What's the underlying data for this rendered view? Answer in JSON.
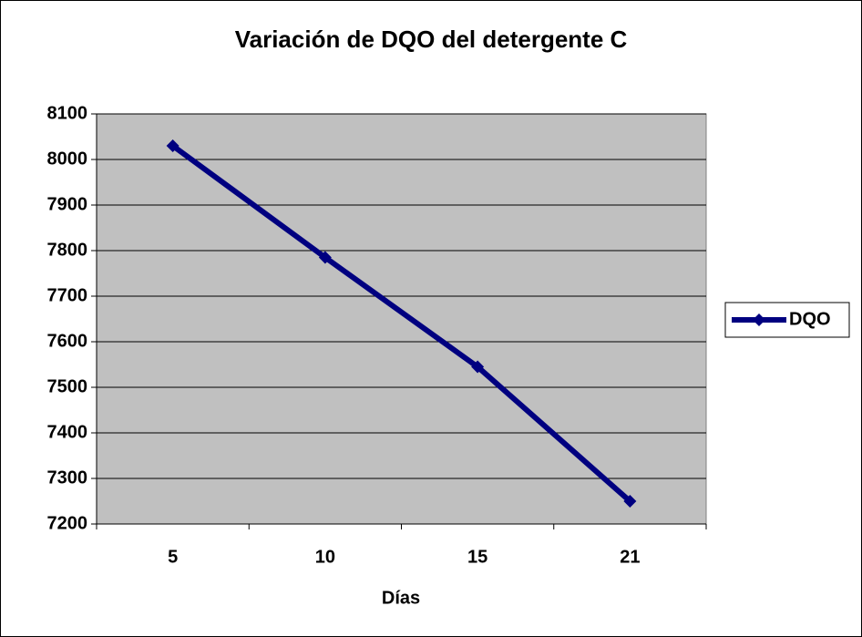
{
  "chart_data": {
    "type": "line",
    "title": "Variación de DQO del detergente C",
    "x_label": "Días",
    "categories": [
      "5",
      "10",
      "15",
      "21"
    ],
    "series": [
      {
        "name": "DQO",
        "color": "#000080",
        "values": [
          8030,
          7785,
          7545,
          7250
        ]
      }
    ],
    "ylim": [
      7200,
      8100
    ],
    "yticks": [
      7200,
      7300,
      7400,
      7500,
      7600,
      7700,
      7800,
      7900,
      8000,
      8100
    ],
    "grid": true,
    "legend": "right"
  }
}
